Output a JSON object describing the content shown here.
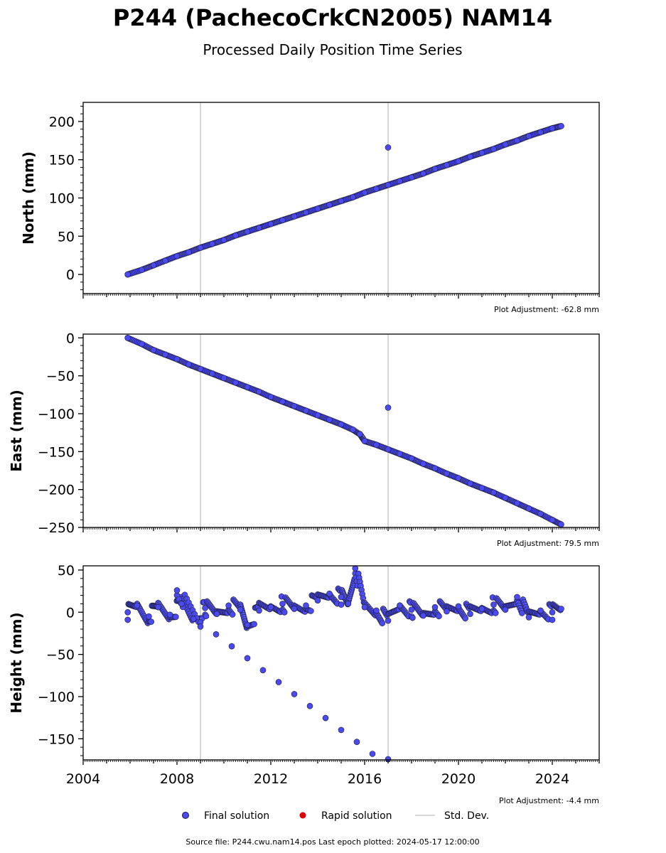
{
  "title": "P244 (PachecoCrkCN2005) NAM14",
  "subtitle": "Processed Daily Position Time Series",
  "footer": "Source file: P244.cwu.nam14.pos  Last epoch plotted: 2024-05-17 12:00:00",
  "colors": {
    "final": "#4a4af0",
    "final_edge": "#1a1a3a",
    "rapid": "#dd0000",
    "stddev": "#c8c8c8"
  },
  "legend": {
    "final_label": "Final solution",
    "rapid_label": "Rapid solution",
    "std_label": "Std. Dev."
  },
  "x_tick_labels": [
    "2004",
    "2008",
    "2012",
    "2016",
    "2020",
    "2024"
  ],
  "chart_data": [
    {
      "type": "scatter",
      "ylabel": "North (mm)",
      "adjustment": "Plot Adjustment: -62.8 mm",
      "xlim": [
        2004.0,
        2026.0
      ],
      "ylim": [
        -25,
        225
      ],
      "yticks": [
        0,
        50,
        100,
        150,
        200
      ],
      "ytick_labels": [
        "0",
        "50",
        "100",
        "150",
        "200"
      ],
      "series": [
        {
          "values": [
            [
              2005.9,
              0
            ],
            [
              2006.5,
              6
            ],
            [
              2007.0,
              12
            ],
            [
              2007.5,
              18
            ],
            [
              2008.0,
              24
            ],
            [
              2008.5,
              29
            ],
            [
              2009.0,
              35
            ],
            [
              2009.5,
              40
            ],
            [
              2010.0,
              45
            ],
            [
              2010.5,
              51
            ],
            [
              2011.0,
              56
            ],
            [
              2011.5,
              61
            ],
            [
              2012.0,
              66
            ],
            [
              2012.5,
              71
            ],
            [
              2013.0,
              76
            ],
            [
              2013.5,
              81
            ],
            [
              2014.0,
              86
            ],
            [
              2014.5,
              91
            ],
            [
              2015.0,
              96
            ],
            [
              2015.5,
              101
            ],
            [
              2016.0,
              107
            ],
            [
              2016.5,
              112
            ],
            [
              2017.0,
              117
            ],
            [
              2017.5,
              122
            ],
            [
              2018.0,
              127
            ],
            [
              2018.5,
              132
            ],
            [
              2019.0,
              138
            ],
            [
              2019.5,
              143
            ],
            [
              2020.0,
              148
            ],
            [
              2020.5,
              154
            ],
            [
              2021.0,
              159
            ],
            [
              2021.5,
              164
            ],
            [
              2022.0,
              170
            ],
            [
              2022.5,
              175
            ],
            [
              2023.0,
              181
            ],
            [
              2023.5,
              186
            ],
            [
              2024.0,
              191
            ],
            [
              2024.38,
              194
            ],
            [
              2017.0,
              166
            ]
          ]
        }
      ],
      "outlier_bars_x": [
        2009.0,
        2017.0
      ]
    },
    {
      "type": "scatter",
      "ylabel": "East (mm)",
      "adjustment": "Plot Adjustment: 79.5 mm",
      "xlim": [
        2004.0,
        2026.0
      ],
      "ylim": [
        -250,
        5
      ],
      "yticks": [
        0,
        -50,
        -100,
        -150,
        -200,
        -250
      ],
      "ytick_labels": [
        "0",
        "−50",
        "−100",
        "−150",
        "−200",
        "−250"
      ],
      "series": [
        {
          "values": [
            [
              2005.9,
              0
            ],
            [
              2006.5,
              -8
            ],
            [
              2007.0,
              -16
            ],
            [
              2007.5,
              -22
            ],
            [
              2008.0,
              -28
            ],
            [
              2008.5,
              -35
            ],
            [
              2009.0,
              -41
            ],
            [
              2009.5,
              -47
            ],
            [
              2010.0,
              -53
            ],
            [
              2010.5,
              -59
            ],
            [
              2011.0,
              -65
            ],
            [
              2011.5,
              -71
            ],
            [
              2012.0,
              -78
            ],
            [
              2012.5,
              -84
            ],
            [
              2013.0,
              -90
            ],
            [
              2013.5,
              -96
            ],
            [
              2014.0,
              -102
            ],
            [
              2014.5,
              -108
            ],
            [
              2015.0,
              -114
            ],
            [
              2015.5,
              -121
            ],
            [
              2015.8,
              -127
            ],
            [
              2016.0,
              -136
            ],
            [
              2016.5,
              -141
            ],
            [
              2017.0,
              -147
            ],
            [
              2017.5,
              -153
            ],
            [
              2018.0,
              -159
            ],
            [
              2018.5,
              -166
            ],
            [
              2019.0,
              -172
            ],
            [
              2019.5,
              -179
            ],
            [
              2020.0,
              -185
            ],
            [
              2020.5,
              -192
            ],
            [
              2021.0,
              -198
            ],
            [
              2021.5,
              -204
            ],
            [
              2022.0,
              -211
            ],
            [
              2022.5,
              -218
            ],
            [
              2023.0,
              -225
            ],
            [
              2023.5,
              -232
            ],
            [
              2024.0,
              -240
            ],
            [
              2024.38,
              -246
            ],
            [
              2017.0,
              -92
            ]
          ]
        }
      ],
      "outlier_bars_x": [
        2009.0,
        2017.0
      ]
    },
    {
      "type": "scatter",
      "ylabel": "Height (mm)",
      "adjustment": "Plot Adjustment: -4.4 mm",
      "xlim": [
        2004.0,
        2026.0
      ],
      "ylim": [
        -175,
        55
      ],
      "yticks": [
        50,
        0,
        -50,
        -100,
        -150
      ],
      "ytick_labels": [
        "50",
        "0",
        "−50",
        "−100",
        "−150"
      ],
      "series": [
        {
          "values": [
            [
              2005.9,
              0
            ],
            [
              2006.3,
              8
            ],
            [
              2006.8,
              -5
            ],
            [
              2007.2,
              6
            ],
            [
              2007.7,
              -3
            ],
            [
              2008.2,
              10
            ],
            [
              2008.7,
              -8
            ],
            [
              2009.2,
              5
            ],
            [
              2009.7,
              -2
            ],
            [
              2010.2,
              8
            ],
            [
              2010.7,
              3
            ],
            [
              2011.0,
              -15
            ],
            [
              2011.5,
              2
            ],
            [
              2012.0,
              6
            ],
            [
              2012.5,
              10
            ],
            [
              2013.0,
              4
            ],
            [
              2013.5,
              8
            ],
            [
              2014.0,
              14
            ],
            [
              2014.5,
              22
            ],
            [
              2015.0,
              18
            ],
            [
              2015.3,
              10
            ],
            [
              2015.6,
              52
            ],
            [
              2016.0,
              6
            ],
            [
              2016.5,
              2
            ],
            [
              2017.0,
              -10
            ],
            [
              2017.5,
              8
            ],
            [
              2018.0,
              3
            ],
            [
              2018.5,
              -4
            ],
            [
              2019.0,
              6
            ],
            [
              2019.5,
              1
            ],
            [
              2020.0,
              7
            ],
            [
              2020.5,
              -2
            ],
            [
              2021.0,
              4
            ],
            [
              2021.5,
              9
            ],
            [
              2022.0,
              3
            ],
            [
              2022.5,
              18
            ],
            [
              2023.0,
              -6
            ],
            [
              2023.5,
              2
            ],
            [
              2024.0,
              0
            ],
            [
              2024.38,
              4
            ],
            [
              2008.0,
              26
            ],
            [
              2009.0,
              -17
            ],
            [
              2017.0,
              -175
            ]
          ]
        }
      ],
      "outlier_bars_x": [
        2009.0,
        2017.0
      ]
    }
  ]
}
